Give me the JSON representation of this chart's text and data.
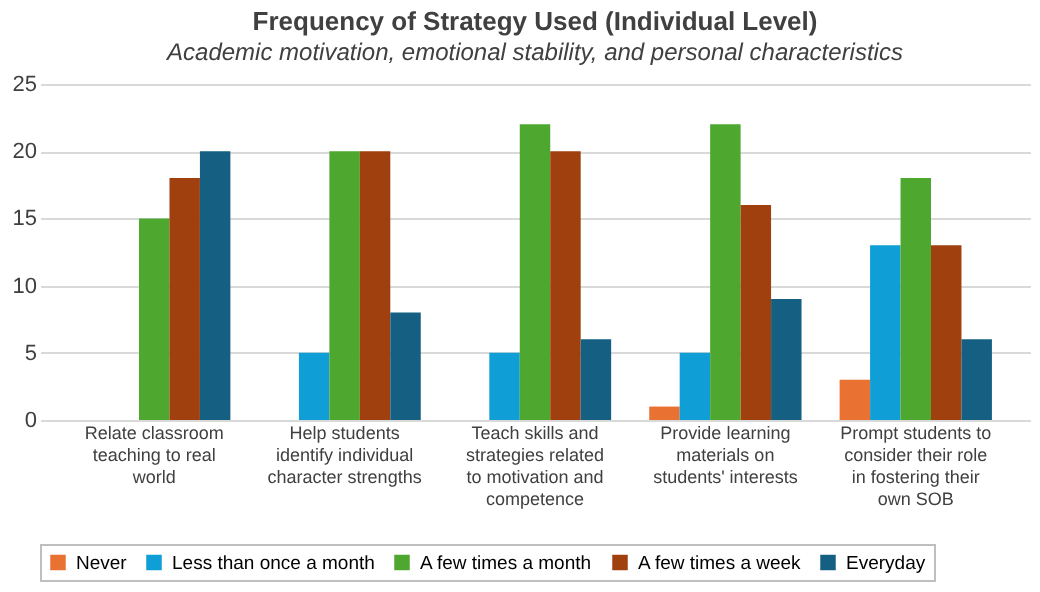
{
  "chart_data": {
    "type": "bar",
    "title": "Frequency of Strategy Used (Individual Level)",
    "subtitle": "Academic motivation, emotional stability, and personal characteristics",
    "categories": [
      "Relate classroom teaching to real world",
      "Help students identify individual character strengths",
      "Teach skills and strategies related to motivation and competence",
      "Provide learning materials on students' interests",
      "Prompt students to consider their role in fostering their own SOB"
    ],
    "series": [
      {
        "name": "Never",
        "color": "#e97132",
        "values": [
          0,
          0,
          0,
          1,
          3
        ]
      },
      {
        "name": "Less than once a month",
        "color": "#0f9ed5",
        "values": [
          0,
          5,
          5,
          5,
          13
        ]
      },
      {
        "name": "A few times a month",
        "color": "#4ea72e",
        "values": [
          15,
          20,
          22,
          22,
          18
        ]
      },
      {
        "name": "A few times a week",
        "color": "#a0400f",
        "values": [
          18,
          20,
          20,
          16,
          13
        ]
      },
      {
        "name": "Everyday",
        "color": "#156082",
        "values": [
          20,
          8,
          6,
          9,
          6
        ]
      }
    ],
    "ylim": [
      0,
      25
    ],
    "yticks": [
      0,
      5,
      10,
      15,
      20,
      25
    ],
    "grid": "y",
    "legend": "bottom"
  }
}
